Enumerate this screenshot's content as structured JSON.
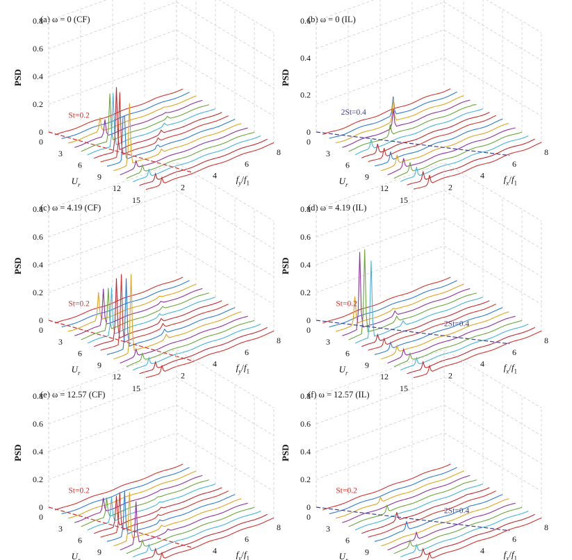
{
  "figure": {
    "description_free": true
  },
  "shared_axes": {
    "psd_ticks": [
      "0",
      "0.2",
      "0.4",
      "0.6",
      "0.8"
    ],
    "ur_ticks": [
      "0",
      "3",
      "6",
      "9",
      "12",
      "15"
    ],
    "freq_ticks": [
      "2",
      "4",
      "6",
      "8"
    ],
    "psd_label": "PSD",
    "ur_label_main": "U",
    "ur_label_sub": "r",
    "cf_freq_label": {
      "main": "f",
      "sub": "y",
      "slash": "/",
      "main2": "f",
      "sub2": "1"
    },
    "il_freq_label": {
      "main": "f",
      "sub": "x",
      "slash": "/",
      "main2": "f",
      "sub2": "1"
    }
  },
  "colors": [
    "#d6302a",
    "#2c7bd6",
    "#e2a21c",
    "#8e2fa3",
    "#6aa53a",
    "#42b3e0",
    "#c2262d"
  ],
  "chart_data": [
    {
      "type": "line",
      "title": "(a) ω = 0 (CF)",
      "zlabel": "PSD",
      "zlim": [
        0,
        0.8
      ],
      "ylabel": "Ur",
      "ylim": [
        0,
        15
      ],
      "xlabel": "fy/f1",
      "xlim": [
        0,
        8
      ],
      "annotations": [
        {
          "text": "St=0.2",
          "color": "#d6302a"
        }
      ],
      "peak_ur": [
        3,
        4,
        5,
        6,
        7,
        8,
        9,
        10
      ],
      "peak_freq": [
        2.0,
        1.9,
        1.8,
        1.6,
        1.4,
        1.2,
        1.05,
        1.0
      ],
      "peak_psd": [
        0.1,
        0.12,
        0.34,
        0.38,
        0.46,
        0.46,
        0.47,
        0.44
      ],
      "dashed_line": {
        "label": "St=0.2",
        "from": [
          0,
          0
        ],
        "to": [
          15,
          3
        ]
      }
    },
    {
      "type": "line",
      "title": "(b) ω = 0 (IL)",
      "zlabel": "PSD",
      "zlim": [
        0,
        0.6
      ],
      "ylabel": "Ur",
      "ylim": [
        0,
        15
      ],
      "xlabel": "fx/f1",
      "xlim": [
        0,
        8
      ],
      "annotations": [
        {
          "text": "2St=0.4",
          "color": "#3b3f8f"
        }
      ],
      "peak_ur": [
        2,
        3,
        4,
        5
      ],
      "peak_freq": [
        4.0,
        3.6,
        3.2,
        2.6
      ],
      "peak_psd": [
        0.1,
        0.12,
        0.1,
        0.06
      ],
      "dashed_line": {
        "label": "2St=0.4",
        "from": [
          0,
          0
        ],
        "to": [
          15,
          6
        ]
      }
    },
    {
      "type": "line",
      "title": "(c) ω = 4.19 (CF)",
      "zlabel": "PSD",
      "zlim": [
        0,
        0.8
      ],
      "ylabel": "Ur",
      "ylim": [
        0,
        15
      ],
      "xlabel": "fy/f1",
      "xlim": [
        0,
        8
      ],
      "annotations": [
        {
          "text": "St=0.2",
          "color": "#d6302a"
        }
      ],
      "peak_ur": [
        3,
        4,
        5,
        6,
        7,
        8,
        9,
        10
      ],
      "peak_freq": [
        1.9,
        1.8,
        1.7,
        1.5,
        1.4,
        1.3,
        1.2,
        1.1
      ],
      "peak_psd": [
        0.2,
        0.26,
        0.3,
        0.34,
        0.44,
        0.5,
        0.5,
        0.56
      ],
      "dashed_line": {
        "label": "St=0.2",
        "from": [
          0,
          0
        ],
        "to": [
          15,
          3
        ]
      }
    },
    {
      "type": "line",
      "title": "(d) ω = 4.19 (IL)",
      "zlabel": "PSD",
      "zlim": [
        0,
        0.8
      ],
      "ylabel": "Ur",
      "ylim": [
        0,
        15
      ],
      "xlabel": "fx/f1",
      "xlim": [
        0,
        8
      ],
      "annotations": [
        {
          "text": "St=0.2",
          "color": "#d6302a"
        },
        {
          "text": "2St=0.4",
          "color": "#3b3f8f"
        }
      ],
      "peak_ur": [
        3,
        4,
        5,
        6
      ],
      "peak_freq": [
        1.2,
        1.1,
        1.0,
        1.0
      ],
      "peak_psd": [
        0.2,
        0.55,
        0.6,
        0.55
      ],
      "dashed_line": {
        "label": "2St=0.4",
        "from": [
          0,
          0
        ],
        "to": [
          15,
          6
        ]
      }
    },
    {
      "type": "line",
      "title": "(e) ω = 12.57 (CF)",
      "zlabel": "PSD",
      "zlim": [
        0,
        0.8
      ],
      "ylabel": "Ur",
      "ylim": [
        0,
        15
      ],
      "xlabel": "fy/f1",
      "xlim": [
        0,
        8
      ],
      "annotations": [
        {
          "text": "St=0.2",
          "color": "#d6302a"
        }
      ],
      "peak_ur": [
        4,
        5,
        6,
        7,
        8,
        9,
        10,
        11
      ],
      "peak_freq": [
        1.8,
        1.6,
        1.5,
        1.4,
        1.2,
        1.1,
        1.0,
        1.0
      ],
      "peak_psd": [
        0.1,
        0.14,
        0.18,
        0.22,
        0.28,
        0.32,
        0.34,
        0.3
      ],
      "dashed_line": {
        "label": "St=0.2",
        "from": [
          0,
          0
        ],
        "to": [
          15,
          3
        ]
      }
    },
    {
      "type": "line",
      "title": "(f) ω = 12.57 (IL)",
      "zlabel": "PSD",
      "zlim": [
        0,
        0.8
      ],
      "ylabel": "Ur",
      "ylim": [
        0,
        15
      ],
      "xlabel": "fx/f1",
      "xlim": [
        0,
        8
      ],
      "annotations": [
        {
          "text": "St=0.2",
          "color": "#d6302a"
        },
        {
          "text": "2St=0.4",
          "color": "#3b3f8f"
        }
      ],
      "peak_ur": [
        3,
        5,
        7,
        9,
        11
      ],
      "peak_freq": [
        2.8,
        2.4,
        2.2,
        2.0,
        1.8
      ],
      "peak_psd": [
        0.04,
        0.05,
        0.06,
        0.06,
        0.05
      ],
      "dashed_line": {
        "label": "2St=0.4",
        "from": [
          0,
          0
        ],
        "to": [
          15,
          6
        ]
      }
    }
  ]
}
